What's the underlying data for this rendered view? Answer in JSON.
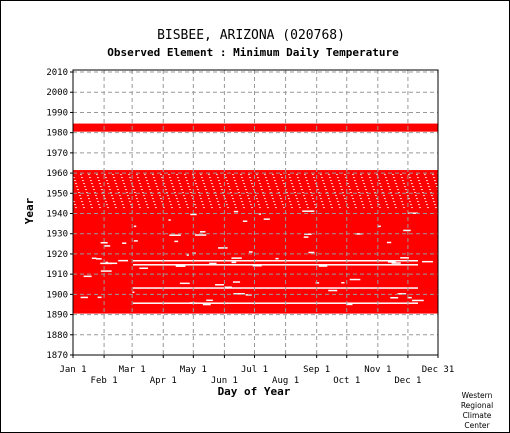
{
  "chart_data": {
    "type": "heatmap",
    "title": "BISBEE, ARIZONA   (020768)",
    "subtitle": "Observed Element : Minimum Daily Temperature",
    "xlabel": "Day of Year",
    "ylabel": "Year",
    "xlim": [
      1,
      365
    ],
    "ylim": [
      1870,
      2011
    ],
    "y_ticks": [
      1870,
      1880,
      1890,
      1900,
      1910,
      1920,
      1930,
      1940,
      1950,
      1960,
      1970,
      1980,
      1990,
      2000,
      2010
    ],
    "x_ticks_upper": [
      {
        "label": "Jan 1",
        "day": 1
      },
      {
        "label": "Mar 1",
        "day": 60
      },
      {
        "label": "May 1",
        "day": 121
      },
      {
        "label": "Jul 1",
        "day": 182
      },
      {
        "label": "Sep 1",
        "day": 244
      },
      {
        "label": "Nov 1",
        "day": 305
      },
      {
        "label": "Dec 31",
        "day": 365
      }
    ],
    "x_ticks_lower": [
      {
        "label": "Feb 1",
        "day": 32
      },
      {
        "label": "Apr 1",
        "day": 91
      },
      {
        "label": "Jun 1",
        "day": 152
      },
      {
        "label": "Aug 1",
        "day": 213
      },
      {
        "label": "Oct 1",
        "day": 274
      },
      {
        "label": "Dec 1",
        "day": 335
      }
    ],
    "grid": true,
    "data_color": "#ff0000",
    "coverage": [
      {
        "year_start": 1891,
        "year_end": 1892,
        "day_start": 1,
        "day_end": 365
      },
      {
        "year_start": 1893,
        "year_end": 1961,
        "day_start": 1,
        "day_end": 365
      },
      {
        "year_start": 1981,
        "year_end": 1984,
        "day_start": 1,
        "day_end": 365
      }
    ]
  },
  "credit": [
    "Western",
    "Regional",
    "Climate",
    "Center"
  ]
}
